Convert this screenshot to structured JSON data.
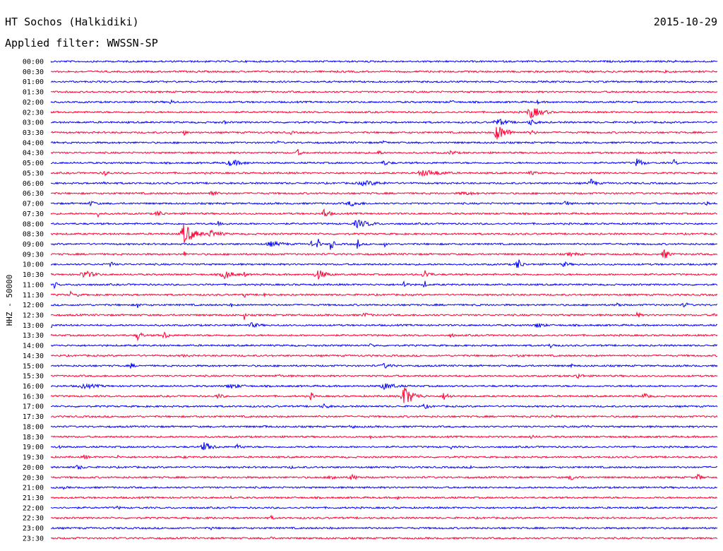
{
  "header": {
    "station": "HT Sochos (Halkidiki)",
    "date": "2015-10-29",
    "filter": "Applied filter: WWSSN-SP"
  },
  "chart_data": {
    "type": "line",
    "title": "HT Sochos (Halkidiki)",
    "subtitle": "Applied filter: WWSSN-SP",
    "ylabel": "HHZ - 50000",
    "xlabel": "",
    "trace_colors": [
      "#0000ff",
      "#ff0033"
    ],
    "rows": [
      {
        "label": "00:00",
        "events": [
          {
            "pos": 0.14,
            "amp": 3,
            "w": 0.004
          },
          {
            "pos": 0.935,
            "amp": 4,
            "w": 0.01
          }
        ]
      },
      {
        "label": "00:30",
        "events": [
          {
            "pos": 0.22,
            "amp": 2,
            "w": 0.015
          },
          {
            "pos": 0.49,
            "amp": 2,
            "w": 0.01
          },
          {
            "pos": 0.67,
            "amp": 2,
            "w": 0.01
          },
          {
            "pos": 0.92,
            "amp": 5,
            "w": 0.012
          }
        ]
      },
      {
        "label": "01:00",
        "events": [
          {
            "pos": 0.08,
            "amp": 2,
            "w": 0.006
          }
        ]
      },
      {
        "label": "01:30",
        "events": []
      },
      {
        "label": "02:00",
        "events": [
          {
            "pos": 0.18,
            "amp": 4,
            "w": 0.012
          },
          {
            "pos": 0.6,
            "amp": 3,
            "w": 0.015
          },
          {
            "pos": 0.73,
            "amp": 3,
            "w": 0.01
          }
        ]
      },
      {
        "label": "02:30",
        "events": [
          {
            "pos": 0.14,
            "amp": 2,
            "w": 0.01
          },
          {
            "pos": 0.72,
            "amp": 9,
            "w": 0.03
          }
        ]
      },
      {
        "label": "03:00",
        "events": [
          {
            "pos": 0.05,
            "amp": 2,
            "w": 0.01
          },
          {
            "pos": 0.26,
            "amp": 3,
            "w": 0.01
          },
          {
            "pos": 0.67,
            "amp": 6,
            "w": 0.03
          },
          {
            "pos": 0.72,
            "amp": 5,
            "w": 0.02
          }
        ]
      },
      {
        "label": "03:30",
        "events": [
          {
            "pos": 0.2,
            "amp": 4,
            "w": 0.01
          },
          {
            "pos": 0.36,
            "amp": 3,
            "w": 0.01
          },
          {
            "pos": 0.67,
            "amp": 12,
            "w": 0.025
          },
          {
            "pos": 0.72,
            "amp": 4,
            "w": 0.02
          }
        ]
      },
      {
        "label": "04:00",
        "events": [
          {
            "pos": 0.34,
            "amp": 3,
            "w": 0.01
          },
          {
            "pos": 0.5,
            "amp": 4,
            "w": 0.01
          }
        ]
      },
      {
        "label": "04:30",
        "events": [
          {
            "pos": 0.37,
            "amp": 7,
            "w": 0.008
          },
          {
            "pos": 0.49,
            "amp": 5,
            "w": 0.012
          },
          {
            "pos": 0.6,
            "amp": 4,
            "w": 0.02
          }
        ]
      },
      {
        "label": "05:00",
        "events": [
          {
            "pos": 0.27,
            "amp": 5,
            "w": 0.04
          },
          {
            "pos": 0.5,
            "amp": 4,
            "w": 0.02
          },
          {
            "pos": 0.88,
            "amp": 8,
            "w": 0.015
          },
          {
            "pos": 0.935,
            "amp": 6,
            "w": 0.008
          }
        ]
      },
      {
        "label": "05:30",
        "events": [
          {
            "pos": 0.08,
            "amp": 4,
            "w": 0.02
          },
          {
            "pos": 0.56,
            "amp": 5,
            "w": 0.06
          },
          {
            "pos": 0.72,
            "amp": 3,
            "w": 0.03
          }
        ]
      },
      {
        "label": "06:00",
        "events": [
          {
            "pos": 0.08,
            "amp": 4,
            "w": 0.01
          },
          {
            "pos": 0.47,
            "amp": 4,
            "w": 0.06
          },
          {
            "pos": 0.81,
            "amp": 7,
            "w": 0.015
          }
        ]
      },
      {
        "label": "06:30",
        "events": [
          {
            "pos": 0.24,
            "amp": 5,
            "w": 0.02
          },
          {
            "pos": 0.62,
            "amp": 3,
            "w": 0.05
          }
        ]
      },
      {
        "label": "07:00",
        "events": [
          {
            "pos": 0.06,
            "amp": 4,
            "w": 0.02
          },
          {
            "pos": 0.45,
            "amp": 4,
            "w": 0.04
          },
          {
            "pos": 0.77,
            "amp": 7,
            "w": 0.012
          },
          {
            "pos": 0.98,
            "amp": 8,
            "w": 0.01
          }
        ]
      },
      {
        "label": "07:30",
        "events": [
          {
            "pos": 0.07,
            "amp": 7,
            "w": 0.004
          },
          {
            "pos": 0.16,
            "amp": 5,
            "w": 0.02
          },
          {
            "pos": 0.41,
            "amp": 8,
            "w": 0.015
          }
        ]
      },
      {
        "label": "08:00",
        "events": [
          {
            "pos": 0.25,
            "amp": 5,
            "w": 0.02
          },
          {
            "pos": 0.46,
            "amp": 6,
            "w": 0.04
          }
        ]
      },
      {
        "label": "08:30",
        "events": [
          {
            "pos": 0.2,
            "amp": 16,
            "w": 0.025
          },
          {
            "pos": 0.24,
            "amp": 6,
            "w": 0.03
          }
        ]
      },
      {
        "label": "09:00",
        "events": [
          {
            "pos": 0.39,
            "amp": 12,
            "w": 0.003
          },
          {
            "pos": 0.4,
            "amp": 13,
            "w": 0.005
          },
          {
            "pos": 0.42,
            "amp": 14,
            "w": 0.006
          },
          {
            "pos": 0.46,
            "amp": 9,
            "w": 0.006
          },
          {
            "pos": 0.5,
            "amp": 8,
            "w": 0.004
          },
          {
            "pos": 0.33,
            "amp": 4,
            "w": 0.05
          }
        ]
      },
      {
        "label": "09:30",
        "events": [
          {
            "pos": 0.2,
            "amp": 8,
            "w": 0.003
          },
          {
            "pos": 0.92,
            "amp": 8,
            "w": 0.015
          },
          {
            "pos": 0.78,
            "amp": 3,
            "w": 0.04
          }
        ]
      },
      {
        "label": "10:00",
        "events": [
          {
            "pos": 0.09,
            "amp": 5,
            "w": 0.01
          },
          {
            "pos": 0.7,
            "amp": 10,
            "w": 0.012
          },
          {
            "pos": 0.77,
            "amp": 4,
            "w": 0.02
          }
        ]
      },
      {
        "label": "10:30",
        "events": [
          {
            "pos": 0.05,
            "amp": 6,
            "w": 0.03
          },
          {
            "pos": 0.26,
            "amp": 7,
            "w": 0.025
          },
          {
            "pos": 0.4,
            "amp": 8,
            "w": 0.025
          },
          {
            "pos": 0.56,
            "amp": 8,
            "w": 0.015
          },
          {
            "pos": 0.29,
            "amp": 10,
            "w": 0.003
          }
        ]
      },
      {
        "label": "11:00",
        "events": [
          {
            "pos": 0.005,
            "amp": 6,
            "w": 0.008
          },
          {
            "pos": 0.04,
            "amp": 5,
            "w": 0.006
          },
          {
            "pos": 0.53,
            "amp": 8,
            "w": 0.008
          },
          {
            "pos": 0.56,
            "amp": 10,
            "w": 0.004
          }
        ]
      },
      {
        "label": "11:30",
        "events": [
          {
            "pos": 0.03,
            "amp": 8,
            "w": 0.003
          },
          {
            "pos": 0.04,
            "amp": 6,
            "w": 0.003
          },
          {
            "pos": 0.29,
            "amp": 10,
            "w": 0.003
          },
          {
            "pos": 0.32,
            "amp": 6,
            "w": 0.005
          }
        ]
      },
      {
        "label": "12:00",
        "events": [
          {
            "pos": 0.13,
            "amp": 5,
            "w": 0.008
          },
          {
            "pos": 0.27,
            "amp": 6,
            "w": 0.003
          },
          {
            "pos": 0.64,
            "amp": 5,
            "w": 0.003
          },
          {
            "pos": 0.85,
            "amp": 5,
            "w": 0.01
          },
          {
            "pos": 0.95,
            "amp": 6,
            "w": 0.01
          }
        ]
      },
      {
        "label": "12:30",
        "events": [
          {
            "pos": 0.29,
            "amp": 9,
            "w": 0.003
          },
          {
            "pos": 0.47,
            "amp": 4,
            "w": 0.02
          },
          {
            "pos": 0.88,
            "amp": 5,
            "w": 0.01
          },
          {
            "pos": 0.995,
            "amp": 7,
            "w": 0.003
          }
        ]
      },
      {
        "label": "13:00",
        "events": [
          {
            "pos": 0.0,
            "amp": 5,
            "w": 0.01
          },
          {
            "pos": 0.3,
            "amp": 4,
            "w": 0.03
          },
          {
            "pos": 0.73,
            "amp": 5,
            "w": 0.02
          }
        ]
      },
      {
        "label": "13:30",
        "events": [
          {
            "pos": 0.13,
            "amp": 8,
            "w": 0.012
          },
          {
            "pos": 0.17,
            "amp": 6,
            "w": 0.015
          },
          {
            "pos": 0.6,
            "amp": 4,
            "w": 0.01
          }
        ]
      },
      {
        "label": "14:00",
        "events": [
          {
            "pos": 0.48,
            "amp": 3,
            "w": 0.02
          },
          {
            "pos": 0.75,
            "amp": 5,
            "w": 0.012
          }
        ]
      },
      {
        "label": "14:30",
        "events": [
          {
            "pos": 0.2,
            "amp": 2,
            "w": 0.05
          },
          {
            "pos": 0.7,
            "amp": 2,
            "w": 0.05
          }
        ]
      },
      {
        "label": "15:00",
        "events": [
          {
            "pos": 0.12,
            "amp": 5,
            "w": 0.01
          },
          {
            "pos": 0.5,
            "amp": 4,
            "w": 0.03
          },
          {
            "pos": 0.71,
            "amp": 9,
            "w": 0.003
          },
          {
            "pos": 0.78,
            "amp": 6,
            "w": 0.005
          }
        ]
      },
      {
        "label": "15:30",
        "events": [
          {
            "pos": 0.34,
            "amp": 3,
            "w": 0.02
          },
          {
            "pos": 0.79,
            "amp": 5,
            "w": 0.015
          }
        ]
      },
      {
        "label": "16:00",
        "events": [
          {
            "pos": 0.05,
            "amp": 4,
            "w": 0.05
          },
          {
            "pos": 0.27,
            "amp": 4,
            "w": 0.04
          },
          {
            "pos": 0.5,
            "amp": 5,
            "w": 0.04
          },
          {
            "pos": 0.87,
            "amp": 4,
            "w": 0.01
          }
        ]
      },
      {
        "label": "16:30",
        "events": [
          {
            "pos": 0.25,
            "amp": 4,
            "w": 0.02
          },
          {
            "pos": 0.39,
            "amp": 6,
            "w": 0.01
          },
          {
            "pos": 0.53,
            "amp": 15,
            "w": 0.025
          },
          {
            "pos": 0.59,
            "amp": 6,
            "w": 0.02
          },
          {
            "pos": 0.89,
            "amp": 7,
            "w": 0.012
          }
        ]
      },
      {
        "label": "17:00",
        "events": [
          {
            "pos": 0.41,
            "amp": 4,
            "w": 0.02
          },
          {
            "pos": 0.56,
            "amp": 4,
            "w": 0.02
          }
        ]
      },
      {
        "label": "17:30",
        "events": [
          {
            "pos": 0.22,
            "amp": 3,
            "w": 0.01
          },
          {
            "pos": 0.75,
            "amp": 4,
            "w": 0.01
          }
        ]
      },
      {
        "label": "18:00",
        "events": [
          {
            "pos": 0.32,
            "amp": 3,
            "w": 0.01
          },
          {
            "pos": 0.45,
            "amp": 5,
            "w": 0.01
          },
          {
            "pos": 0.8,
            "amp": 3,
            "w": 0.02
          }
        ]
      },
      {
        "label": "18:30",
        "events": [
          {
            "pos": 0.48,
            "amp": 3,
            "w": 0.01
          },
          {
            "pos": 0.72,
            "amp": 3,
            "w": 0.02
          }
        ]
      },
      {
        "label": "19:00",
        "events": [
          {
            "pos": 0.01,
            "amp": 4,
            "w": 0.01
          },
          {
            "pos": 0.23,
            "amp": 7,
            "w": 0.025
          },
          {
            "pos": 0.28,
            "amp": 4,
            "w": 0.02
          },
          {
            "pos": 0.6,
            "amp": 4,
            "w": 0.006
          }
        ]
      },
      {
        "label": "19:30",
        "events": [
          {
            "pos": 0.05,
            "amp": 4,
            "w": 0.015
          },
          {
            "pos": 0.1,
            "amp": 3,
            "w": 0.01
          },
          {
            "pos": 0.2,
            "amp": 2,
            "w": 0.02
          }
        ]
      },
      {
        "label": "20:00",
        "events": [
          {
            "pos": 0.04,
            "amp": 4,
            "w": 0.02
          },
          {
            "pos": 0.36,
            "amp": 3,
            "w": 0.01
          },
          {
            "pos": 0.63,
            "amp": 3,
            "w": 0.01
          }
        ]
      },
      {
        "label": "20:30",
        "events": [
          {
            "pos": 0.42,
            "amp": 6,
            "w": 0.015
          },
          {
            "pos": 0.45,
            "amp": 5,
            "w": 0.02
          },
          {
            "pos": 0.78,
            "amp": 5,
            "w": 0.02
          },
          {
            "pos": 0.97,
            "amp": 6,
            "w": 0.012
          }
        ]
      },
      {
        "label": "21:00",
        "events": [
          {
            "pos": 0.02,
            "amp": 5,
            "w": 0.006
          }
        ]
      },
      {
        "label": "21:30",
        "events": [
          {
            "pos": 0.27,
            "amp": 3,
            "w": 0.01
          },
          {
            "pos": 0.52,
            "amp": 3,
            "w": 0.01
          }
        ]
      },
      {
        "label": "22:00",
        "events": [
          {
            "pos": 0.1,
            "amp": 3,
            "w": 0.012
          },
          {
            "pos": 0.13,
            "amp": 3,
            "w": 0.006
          }
        ]
      },
      {
        "label": "22:30",
        "events": [
          {
            "pos": 0.24,
            "amp": 3,
            "w": 0.01
          },
          {
            "pos": 0.33,
            "amp": 4,
            "w": 0.01
          }
        ]
      },
      {
        "label": "23:00",
        "events": [
          {
            "pos": 0.24,
            "amp": 3,
            "w": 0.008
          },
          {
            "pos": 0.42,
            "amp": 2,
            "w": 0.01
          }
        ]
      },
      {
        "label": "23:30",
        "events": [
          {
            "pos": 0.04,
            "amp": 2,
            "w": 0.01
          },
          {
            "pos": 0.33,
            "amp": 3,
            "w": 0.008
          }
        ]
      }
    ]
  }
}
